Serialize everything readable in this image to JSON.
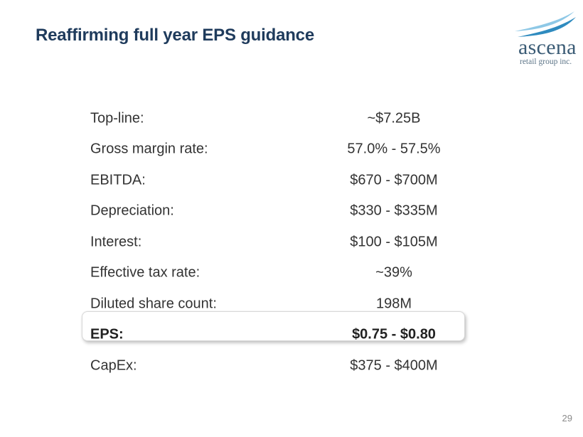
{
  "title": "Reaffirming full year EPS guidance",
  "logo": {
    "name": "ascena",
    "subtitle": "retail group inc."
  },
  "guidance": [
    {
      "label": "Top-line:",
      "value": "~$7.25B"
    },
    {
      "label": "Gross margin rate:",
      "value": "57.0% - 57.5%"
    },
    {
      "label": "EBITDA:",
      "value": "$670 - $700M"
    },
    {
      "label": "Depreciation:",
      "value": "$330 - $335M"
    },
    {
      "label": "Interest:",
      "value": "$100 - $105M"
    },
    {
      "label": "Effective tax rate:",
      "value": "~39%"
    },
    {
      "label": "Diluted share count:",
      "value": "198M"
    },
    {
      "label": "EPS:",
      "value": "$0.75 - $0.80"
    },
    {
      "label": "CapEx:",
      "value": "$375 - $400M"
    }
  ],
  "page_number": "29",
  "colors": {
    "title": "#1f3b5c",
    "text": "#333333",
    "logo_text": "#3a5b75",
    "logo_swoosh_light": "#8ec8e6",
    "logo_swoosh_dark": "#2f8bbf"
  }
}
